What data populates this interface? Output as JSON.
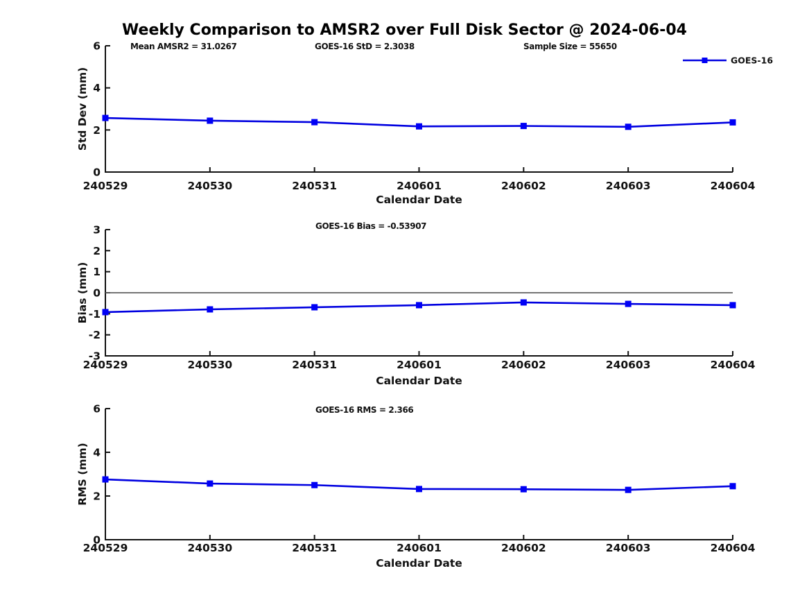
{
  "figure": {
    "title": "Weekly Comparison to AMSR2 over Full Disk Sector @ 2024-06-04"
  },
  "legend": {
    "label": "GOES-16",
    "position": "top-right"
  },
  "colors": {
    "series_line": "#0000e0",
    "marker_fill": "#0000f5",
    "zero_line": "#606060",
    "axis": "#111111",
    "text": "#111111",
    "background": "#ffffff"
  },
  "chart_data": [
    {
      "type": "line",
      "ylabel": "Std Dev (mm)",
      "xlabel": "Calendar Date",
      "ylim": [
        0,
        6
      ],
      "yticks": [
        0,
        2,
        4,
        6
      ],
      "categories": [
        "240529",
        "240530",
        "240531",
        "240601",
        "240602",
        "240603",
        "240604"
      ],
      "series": [
        {
          "name": "GOES-16",
          "values": [
            2.57,
            2.44,
            2.37,
            2.17,
            2.19,
            2.15,
            2.36
          ]
        }
      ],
      "annotations": [
        "Mean AMSR2 = 31.0267",
        "GOES-16 StD = 2.3038",
        "Sample Size = 55650"
      ],
      "legend": {
        "label": "GOES-16",
        "position": "top-right"
      },
      "grid": false,
      "marker": "square"
    },
    {
      "type": "line",
      "ylabel": "Bias (mm)",
      "xlabel": "Calendar Date",
      "ylim": [
        -3,
        3
      ],
      "yticks": [
        -3,
        -2,
        -1,
        0,
        1,
        2,
        3
      ],
      "categories": [
        "240529",
        "240530",
        "240531",
        "240601",
        "240602",
        "240603",
        "240604"
      ],
      "series": [
        {
          "name": "GOES-16",
          "values": [
            -0.92,
            -0.79,
            -0.69,
            -0.59,
            -0.46,
            -0.53,
            -0.59
          ]
        }
      ],
      "annotations": [
        "GOES-16 Bias  = -0.53907"
      ],
      "zero_reference_line": true,
      "grid": false,
      "marker": "square"
    },
    {
      "type": "line",
      "ylabel": "RMS (mm)",
      "xlabel": "Calendar Date",
      "ylim": [
        0,
        6
      ],
      "yticks": [
        0,
        2,
        4,
        6
      ],
      "categories": [
        "240529",
        "240530",
        "240531",
        "240601",
        "240602",
        "240603",
        "240604"
      ],
      "series": [
        {
          "name": "GOES-16",
          "values": [
            2.76,
            2.57,
            2.5,
            2.32,
            2.31,
            2.28,
            2.45
          ]
        }
      ],
      "annotations": [
        "GOES-16 RMS = 2.366"
      ],
      "grid": false,
      "marker": "square"
    }
  ]
}
